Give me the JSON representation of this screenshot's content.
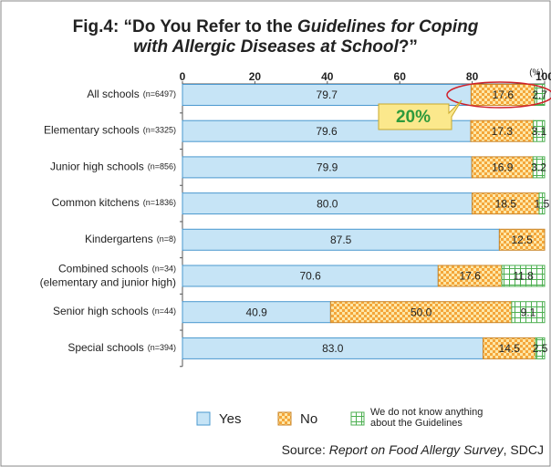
{
  "chart_data": {
    "type": "stacked_bar_horizontal",
    "title": {
      "lines": [
        [
          {
            "text": "Fig.4: “Do You Refer to the ",
            "italic": false
          },
          {
            "text": "Guidelines for Coping",
            "italic": true
          }
        ],
        [
          {
            "text": "with Allergic Diseases at School",
            "italic": true
          },
          {
            "text": "?”",
            "italic": false
          }
        ]
      ]
    },
    "x_unit": "(%)",
    "categories": [
      "All schools",
      "Elementary schools",
      "Junior high schools",
      "Common kitchens",
      "Kindergartens",
      "Combined schools",
      "Senior high schools",
      "Special schools"
    ],
    "sample_sizes": [
      "(n=6497)",
      "(n=3325)",
      "(n=856)",
      "(n=1836)",
      "(n=8)",
      "(n=34)",
      "(n=44)",
      "(n=394)"
    ],
    "category_sublabels": [
      null,
      null,
      null,
      null,
      null,
      "(elementary and junior high)",
      null,
      null
    ],
    "series": [
      {
        "name": "Yes",
        "color": "#c6e4f6",
        "values": [
          79.7,
          79.6,
          79.9,
          80.0,
          87.5,
          70.6,
          40.9,
          83.0
        ],
        "value_labels": [
          "79.7",
          "79.6",
          "79.9",
          "80.0",
          "87.5",
          "70.6",
          "40.9",
          "83.0"
        ]
      },
      {
        "name": "No",
        "color": "#f4a63a",
        "values": [
          17.6,
          17.3,
          16.9,
          18.5,
          12.5,
          17.6,
          50.0,
          14.5
        ],
        "value_labels": [
          "17.6",
          "17.3",
          "16.9",
          "18.5",
          "12.5",
          "17.6",
          "50.0",
          "14.5"
        ]
      },
      {
        "name": "We do not know anything about the Guidelines",
        "color": "#4caf50",
        "values": [
          2.7,
          3.1,
          3.2,
          1.5,
          0,
          11.8,
          9.1,
          2.5
        ],
        "value_labels": [
          "2.7",
          "3.1",
          "3.2",
          "1.5",
          null,
          "11.8",
          "9.1",
          "2.5"
        ]
      }
    ],
    "xlim": [
      0,
      100
    ],
    "xticks": [
      0,
      20,
      40,
      60,
      80,
      100
    ],
    "annotation": "20%",
    "source": [
      {
        "text": "Source: ",
        "italic": false
      },
      {
        "text": "Report on Food Allergy Survey",
        "italic": true
      },
      {
        "text": ", SDCJ",
        "italic": false
      }
    ]
  }
}
